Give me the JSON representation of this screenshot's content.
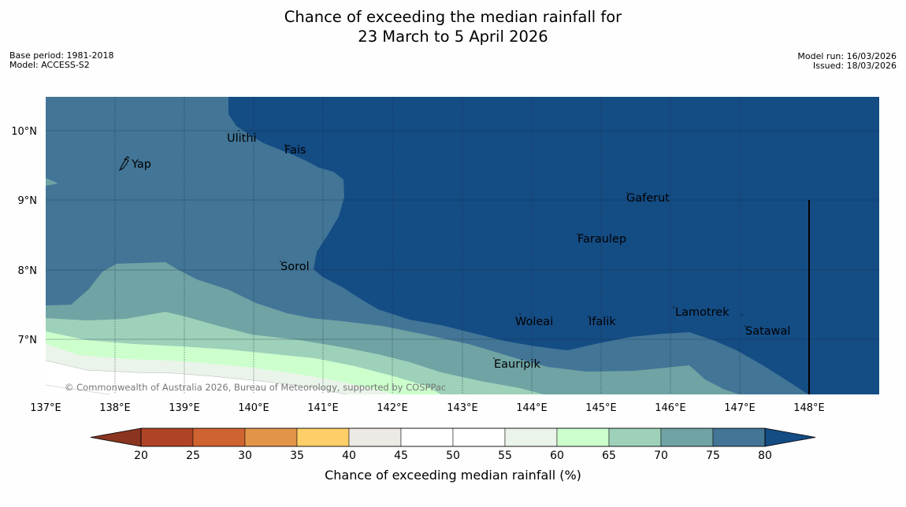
{
  "title": {
    "line1": "Chance of exceeding the median rainfall for",
    "line2": "23 March to 5 April 2026"
  },
  "meta": {
    "base_period": "Base period: 1981-2018",
    "model": "Model: ACCESS-S2",
    "model_run": "Model run: 16/03/2026",
    "issued": "Issued: 18/03/2026"
  },
  "map": {
    "lat_labels": [
      "10°N",
      "9°N",
      "8°N",
      "7°N"
    ],
    "lon_labels": [
      "137°E",
      "138°E",
      "139°E",
      "140°E",
      "141°E",
      "142°E",
      "143°E",
      "144°E",
      "145°E",
      "146°E",
      "147°E",
      "148°E"
    ],
    "places": [
      {
        "id": "ulithi",
        "name": "Ulithi"
      },
      {
        "id": "fais",
        "name": "Fais"
      },
      {
        "id": "yap",
        "name": "Yap"
      },
      {
        "id": "gaferut",
        "name": "Gaferut"
      },
      {
        "id": "faraulep",
        "name": "Faraulep"
      },
      {
        "id": "sorol",
        "name": "Sorol"
      },
      {
        "id": "lamotrek",
        "name": "Lamotrek"
      },
      {
        "id": "woleai",
        "name": "Woleai"
      },
      {
        "id": "ifalik",
        "name": "Ifalik"
      },
      {
        "id": "satawal",
        "name": "Satawal"
      },
      {
        "id": "eauripik",
        "name": "Eauripik"
      }
    ],
    "copyright": "© Commonwealth of Australia 2026, Bureau of Meteorology, supported by COSPPac"
  },
  "colorbar": {
    "label": "Chance of exceeding median rainfall (%)",
    "ticks": [
      "20",
      "25",
      "30",
      "35",
      "40",
      "45",
      "50",
      "55",
      "60",
      "65",
      "70",
      "75",
      "80"
    ],
    "colors": [
      "#ae4425",
      "#cf6331",
      "#e29548",
      "#fecf68",
      "#ede9e5",
      "#ffffff",
      "#ffffff",
      "#eaf4ea",
      "#ccffcc",
      "#9ed1b9",
      "#6fa3a4",
      "#427596"
    ],
    "under_color": "#8b3420",
    "over_color": "#144c84"
  },
  "palette": {
    "c60": "#eaf4ea",
    "c65": "#ccffcc",
    "c70": "#9ed1b9",
    "c75": "#6fa3a4",
    "c80": "#427596",
    "c85": "#144c84"
  }
}
